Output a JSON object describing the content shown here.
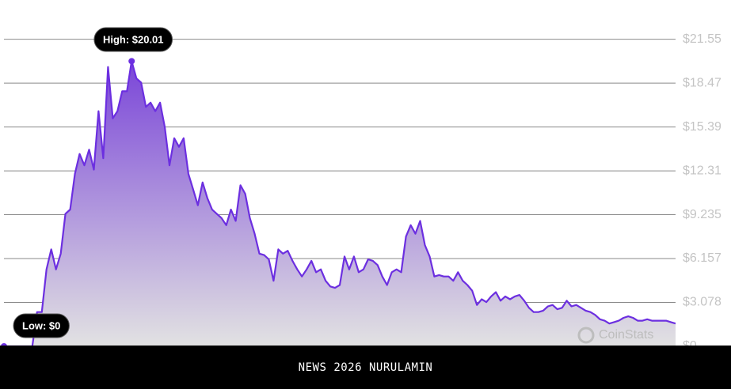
{
  "chart_data": {
    "type": "line",
    "series": [
      {
        "name": "Price",
        "color": "#6c2fe0",
        "values": [
          0,
          0,
          0,
          0,
          0,
          0,
          0,
          2.4,
          2.4,
          5.4,
          6.8,
          5.4,
          6.5,
          9.3,
          9.6,
          12.1,
          13.5,
          12.7,
          13.8,
          12.4,
          16.5,
          13.2,
          19.6,
          16.0,
          16.5,
          17.9,
          17.9,
          20.01,
          18.8,
          18.5,
          16.8,
          17.1,
          16.5,
          17.1,
          15.4,
          12.7,
          14.6,
          14.0,
          14.6,
          12.1,
          11.0,
          9.9,
          11.5,
          10.4,
          9.6,
          9.3,
          9.0,
          8.5,
          9.6,
          8.8,
          11.3,
          10.7,
          9.0,
          7.9,
          6.5,
          6.4,
          6.1,
          4.6,
          6.8,
          6.5,
          6.7,
          6.0,
          5.4,
          4.9,
          5.4,
          6.0,
          5.2,
          5.4,
          4.6,
          4.2,
          4.1,
          4.3,
          6.3,
          5.4,
          6.3,
          5.2,
          5.4,
          6.1,
          6.0,
          5.7,
          4.9,
          4.3,
          5.2,
          5.4,
          5.2,
          7.7,
          8.5,
          7.9,
          8.8,
          7.1,
          6.3,
          4.9,
          5.0,
          4.9,
          4.9,
          4.6,
          5.2,
          4.6,
          4.3,
          3.9,
          2.9,
          3.3,
          3.1,
          3.5,
          3.8,
          3.2,
          3.5,
          3.3,
          3.5,
          3.6,
          3.2,
          2.7,
          2.4,
          2.4,
          2.5,
          2.8,
          2.9,
          2.6,
          2.7,
          3.2,
          2.8,
          2.9,
          2.7,
          2.5,
          2.4,
          2.2,
          1.9,
          1.8,
          1.6,
          1.7,
          1.8,
          2.0,
          2.1,
          2.0,
          1.8,
          1.8,
          1.9,
          1.8,
          1.8,
          1.8,
          1.8,
          1.7,
          1.6
        ]
      }
    ],
    "ylim": [
      0,
      24.3
    ],
    "yticks": [
      {
        "value": 0,
        "label": "$0"
      },
      {
        "value": 3.078,
        "label": "$3.078"
      },
      {
        "value": 6.157,
        "label": "$6.157"
      },
      {
        "value": 9.235,
        "label": "$9.235"
      },
      {
        "value": 12.31,
        "label": "$12.31"
      },
      {
        "value": 15.39,
        "label": "$15.39"
      },
      {
        "value": 18.47,
        "label": "$18.47"
      },
      {
        "value": 21.55,
        "label": "$21.55"
      }
    ],
    "grid": true,
    "high_label": "High: $20.01",
    "low_label": "Low: $0",
    "watermark": "CoinStats"
  },
  "footer": {
    "text": "NEWS 2026 NURULAMIN"
  }
}
